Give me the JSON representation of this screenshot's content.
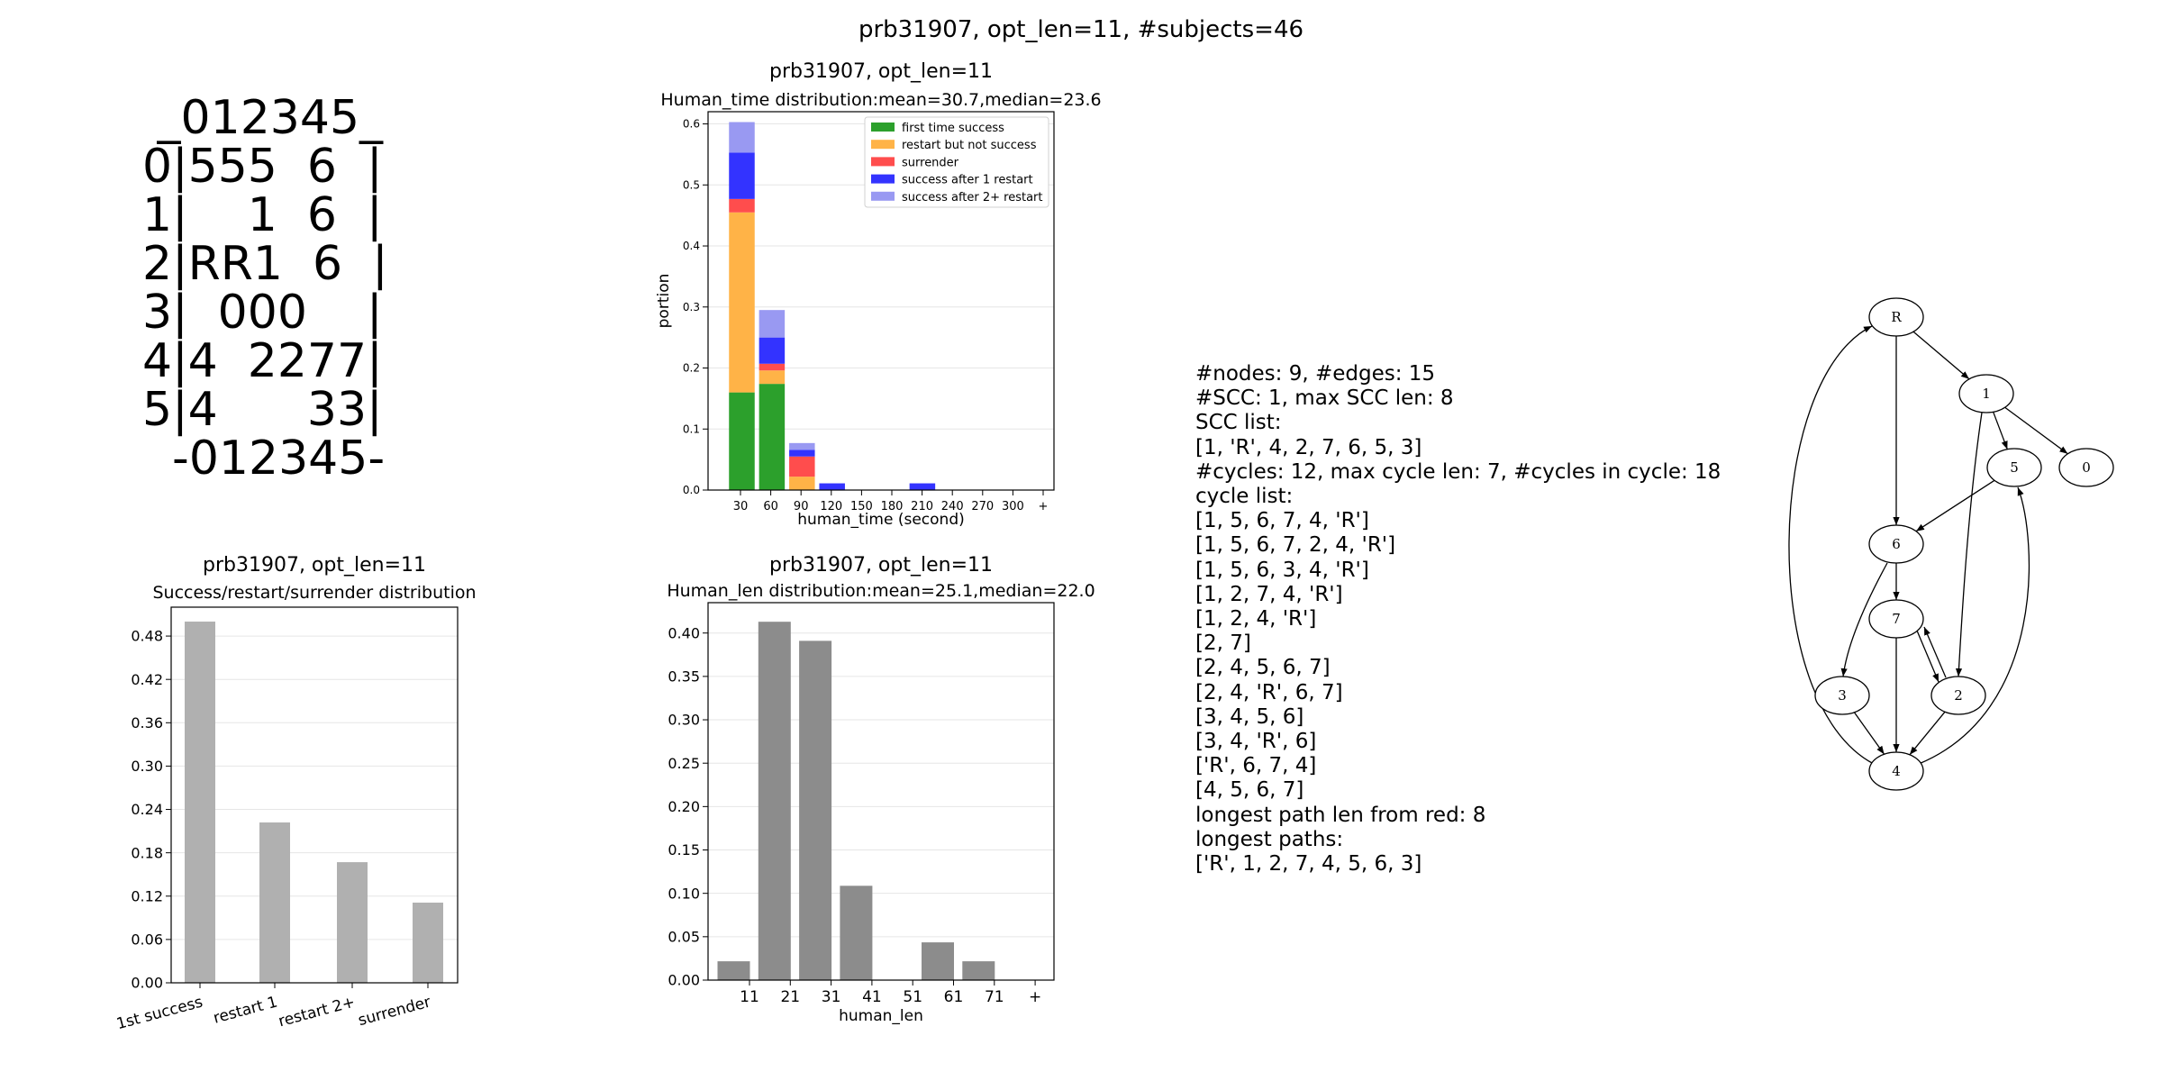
{
  "suptitle": "prb31907, opt_len=11, #subjects=46",
  "board": [
    " _012345_",
    "0|555  6  |",
    "1|    1  6  |",
    "2|RR1  6  |",
    "3|  000    |",
    "4|4  2277|",
    "5|4      33|",
    "  -012345-"
  ],
  "chart_data": [
    {
      "id": "time",
      "type": "bar",
      "title": "prb31907, opt_len=11",
      "subtitle": "Human_time distribution:mean=30.7,median=23.6",
      "xlabel": "human_time (second)",
      "ylabel": "portion",
      "ylim": [
        0,
        0.62
      ],
      "yticks": [
        "0.0",
        "0.1",
        "0.2",
        "0.3",
        "0.4",
        "0.5",
        "0.6"
      ],
      "categories": [
        "30",
        "60",
        "90",
        "120",
        "150",
        "180",
        "210",
        "240",
        "270",
        "300",
        "+"
      ],
      "legend_position": "top-right",
      "series": [
        {
          "name": "first time success",
          "color": "#2ca02c",
          "values": [
            0.16,
            0.174,
            0,
            0,
            0,
            0,
            0,
            0,
            0,
            0,
            0
          ]
        },
        {
          "name": "restart but not success",
          "color": "#ffb347",
          "values": [
            0.295,
            0.022,
            0.022,
            0,
            0,
            0,
            0,
            0,
            0,
            0,
            0
          ]
        },
        {
          "name": "surrender",
          "color": "#ff4d4d",
          "values": [
            0.022,
            0.011,
            0.033,
            0,
            0,
            0,
            0,
            0,
            0,
            0,
            0
          ]
        },
        {
          "name": "success after 1 restart",
          "color": "#3333ff",
          "values": [
            0.076,
            0.043,
            0.011,
            0.011,
            0,
            0,
            0.011,
            0,
            0,
            0,
            0
          ]
        },
        {
          "name": "success after 2+ restart",
          "color": "#9999f2",
          "values": [
            0.05,
            0.045,
            0.011,
            0,
            0,
            0,
            0,
            0,
            0,
            0,
            0
          ]
        }
      ]
    },
    {
      "id": "success",
      "type": "bar",
      "title": "prb31907, opt_len=11",
      "subtitle": "Success/restart/surrender distribution",
      "ylim": [
        0,
        0.52
      ],
      "yticks": [
        "0.00",
        "0.06",
        "0.12",
        "0.18",
        "0.24",
        "0.30",
        "0.36",
        "0.42",
        "0.48"
      ],
      "categories": [
        "1st success",
        "restart 1",
        "restart 2+",
        "surrender"
      ],
      "values": [
        0.5,
        0.222,
        0.167,
        0.111
      ],
      "color": "#b0b0b0"
    },
    {
      "id": "len",
      "type": "bar",
      "title": "prb31907, opt_len=11",
      "subtitle": "Human_len distribution:mean=25.1,median=22.0",
      "xlabel": "human_len",
      "ylim": [
        0,
        0.435
      ],
      "yticks": [
        "0.00",
        "0.05",
        "0.10",
        "0.15",
        "0.20",
        "0.25",
        "0.30",
        "0.35",
        "0.40"
      ],
      "categories": [
        "11",
        "21",
        "31",
        "41",
        "51",
        "61",
        "71",
        "+"
      ],
      "values": [
        0.0217,
        0.413,
        0.391,
        0.1087,
        0,
        0.0435,
        0.0217,
        0
      ],
      "color": "#8c8c8c"
    }
  ],
  "info_lines": [
    "#nodes: 9, #edges: 15",
    "#SCC: 1, max SCC len: 8",
    "SCC list:",
    "[1, 'R', 4, 2, 7, 6, 5, 3]",
    "#cycles: 12, max cycle len: 7, #cycles in cycle: 18",
    "cycle list:",
    "[1, 5, 6, 7, 4, 'R']",
    "[1, 5, 6, 7, 2, 4, 'R']",
    "[1, 5, 6, 3, 4, 'R']",
    "[1, 2, 7, 4, 'R']",
    "[1, 2, 4, 'R']",
    "[2, 7]",
    "[2, 4, 5, 6, 7]",
    "[2, 4, 'R', 6, 7]",
    "[3, 4, 5, 6]",
    "[3, 4, 'R', 6]",
    "['R', 6, 7, 4]",
    "[4, 5, 6, 7]",
    "longest path len from red: 8",
    "longest paths:",
    "['R', 1, 2, 7, 4, 5, 6, 3]"
  ],
  "graph": {
    "nodes": [
      "R",
      "1",
      "5",
      "0",
      "6",
      "7",
      "3",
      "2",
      "4"
    ],
    "edges": [
      [
        "R",
        "1"
      ],
      [
        "R",
        "6"
      ],
      [
        "1",
        "5"
      ],
      [
        "1",
        "0"
      ],
      [
        "1",
        "2"
      ],
      [
        "5",
        "6"
      ],
      [
        "6",
        "7"
      ],
      [
        "6",
        "3"
      ],
      [
        "7",
        "2"
      ],
      [
        "2",
        "7"
      ],
      [
        "7",
        "4"
      ],
      [
        "3",
        "4"
      ],
      [
        "2",
        "4"
      ],
      [
        "4",
        "R"
      ],
      [
        "4",
        "5"
      ]
    ]
  }
}
